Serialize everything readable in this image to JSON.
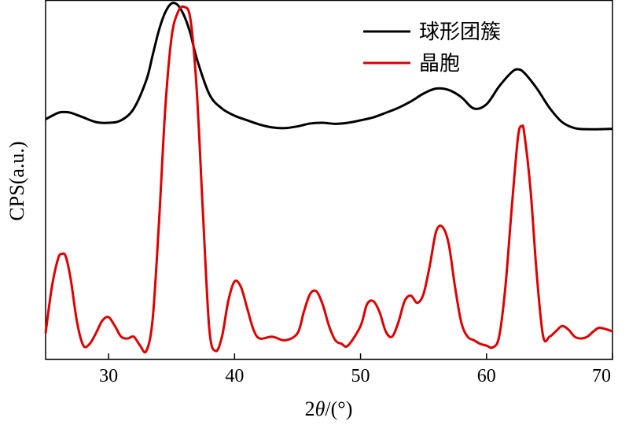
{
  "chart_data": {
    "type": "line",
    "xlabel_prefix": "2",
    "xlabel_symbol": "θ",
    "xlabel_suffix": "/(°)",
    "ylabel": "CPS(a.u.)",
    "xlim": [
      25,
      70
    ],
    "ylim": [
      0,
      1
    ],
    "x_ticks": [
      30,
      40,
      50,
      60,
      70
    ],
    "y_ticks_shown": false,
    "grid": false,
    "legend_position": "top-right",
    "series": [
      {
        "name": "球形团簇",
        "color": "#000000",
        "x": [
          25,
          26,
          26.5,
          27,
          28,
          29,
          30,
          31,
          32,
          33,
          33.5,
          34,
          34.5,
          35,
          35.5,
          36,
          36.5,
          37,
          38,
          39,
          40,
          41,
          42,
          43,
          44,
          45,
          46,
          47,
          48,
          49,
          50,
          51,
          52,
          53,
          54,
          55,
          56,
          57,
          58,
          59,
          60,
          61,
          62,
          62.5,
          63,
          64,
          65,
          66,
          67,
          68,
          69,
          70
        ],
        "y": [
          0.67,
          0.688,
          0.69,
          0.688,
          0.675,
          0.662,
          0.66,
          0.667,
          0.7,
          0.78,
          0.85,
          0.92,
          0.97,
          0.995,
          0.99,
          0.96,
          0.91,
          0.84,
          0.74,
          0.7,
          0.68,
          0.667,
          0.655,
          0.647,
          0.645,
          0.65,
          0.658,
          0.66,
          0.657,
          0.66,
          0.667,
          0.675,
          0.688,
          0.702,
          0.72,
          0.742,
          0.756,
          0.752,
          0.732,
          0.7,
          0.712,
          0.762,
          0.802,
          0.81,
          0.8,
          0.756,
          0.702,
          0.662,
          0.645,
          0.642,
          0.642,
          0.643
        ]
      },
      {
        "name": "晶胞",
        "color": "#dd0000",
        "x": [
          25,
          25.5,
          26,
          26.3,
          26.6,
          27,
          27.5,
          28,
          28.5,
          29,
          29.5,
          30,
          30.5,
          31,
          31.5,
          32,
          32.5,
          33,
          33.5,
          34,
          34.5,
          35,
          35.5,
          36,
          36.5,
          37,
          37.5,
          38,
          38.5,
          39,
          39.5,
          40,
          40.5,
          41,
          41.5,
          42,
          43,
          44,
          45,
          45.5,
          46,
          46.5,
          47,
          47.5,
          48,
          48.5,
          49,
          50,
          50.5,
          51,
          51.5,
          52,
          52.5,
          53,
          53.5,
          54,
          54.5,
          55,
          55.5,
          56,
          56.5,
          57,
          57.5,
          58,
          58.5,
          59,
          59.5,
          60,
          60.5,
          61,
          61.5,
          62,
          62.5,
          62.8,
          63,
          63.5,
          64,
          64.5,
          65,
          65.5,
          66,
          66.5,
          67,
          67.5,
          68,
          68.5,
          69,
          70
        ],
        "y": [
          0.07,
          0.2,
          0.28,
          0.292,
          0.285,
          0.22,
          0.1,
          0.035,
          0.04,
          0.07,
          0.105,
          0.115,
          0.09,
          0.06,
          0.055,
          0.06,
          0.035,
          0.02,
          0.11,
          0.38,
          0.7,
          0.9,
          0.97,
          0.985,
          0.95,
          0.75,
          0.4,
          0.08,
          0.02,
          0.06,
          0.16,
          0.215,
          0.2,
          0.14,
          0.08,
          0.055,
          0.06,
          0.05,
          0.07,
          0.13,
          0.18,
          0.187,
          0.15,
          0.09,
          0.05,
          0.04,
          0.035,
          0.09,
          0.15,
          0.16,
          0.13,
          0.075,
          0.06,
          0.1,
          0.16,
          0.175,
          0.155,
          0.18,
          0.26,
          0.355,
          0.368,
          0.32,
          0.2,
          0.1,
          0.06,
          0.05,
          0.04,
          0.035,
          0.03,
          0.06,
          0.2,
          0.42,
          0.62,
          0.65,
          0.63,
          0.47,
          0.23,
          0.06,
          0.06,
          0.075,
          0.09,
          0.08,
          0.06,
          0.055,
          0.06,
          0.075,
          0.085,
          0.075
        ]
      }
    ]
  }
}
